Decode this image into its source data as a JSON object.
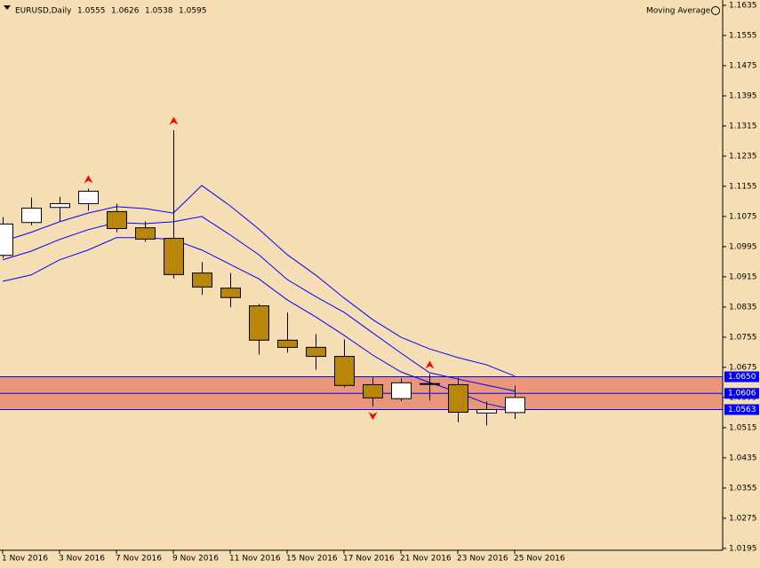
{
  "chart_data": {
    "type": "candlestick",
    "symbol": "EURUSD,Daily",
    "indicator": "Moving Average",
    "background": "#f5deb3",
    "up_color": "#ffffff",
    "down_color": "#b8860b",
    "categories": [
      "1 Nov 2016",
      null,
      "3 Nov 2016",
      null,
      "7 Nov 2016",
      null,
      "9 Nov 2016",
      null,
      "11 Nov 2016",
      null,
      "15 Nov 2016",
      null,
      "17 Nov 2016",
      null,
      "21 Nov 2016",
      null,
      "23 Nov 2016",
      null,
      "25 Nov 2016"
    ],
    "open": [
      1.0972,
      1.1059,
      1.1099,
      1.1109,
      1.1088,
      1.1045,
      1.1017,
      1.0925,
      1.0885,
      1.0838,
      1.0747,
      1.0728,
      1.0704,
      1.0629,
      1.0592,
      1.0632,
      1.0629,
      1.0554,
      1.0555
    ],
    "high": [
      1.1073,
      1.1125,
      1.1127,
      1.1149,
      1.1109,
      1.1062,
      1.1304,
      1.0954,
      1.0925,
      1.0843,
      1.082,
      1.0763,
      1.0749,
      1.0648,
      1.0646,
      1.0657,
      1.0648,
      1.0585,
      1.0626
    ],
    "low": [
      1.0965,
      1.1052,
      1.1062,
      1.109,
      1.1033,
      1.1008,
      1.0911,
      1.0867,
      1.0834,
      1.0709,
      1.0714,
      1.0669,
      1.0622,
      1.0571,
      1.0585,
      1.0587,
      1.053,
      1.0521,
      1.0538
    ],
    "close": [
      1.1055,
      1.1097,
      1.1109,
      1.1142,
      1.1043,
      1.1015,
      1.0921,
      1.0888,
      1.086,
      1.0747,
      1.0728,
      1.0704,
      1.0627,
      1.0594,
      1.0634,
      1.0631,
      1.0556,
      1.0563,
      1.0595
    ],
    "lines": [
      {
        "color": "#0000ff",
        "values": [
          1.1009,
          1.1033,
          1.1061,
          1.1084,
          1.1101,
          1.1096,
          1.1084,
          1.1157,
          1.1103,
          1.1042,
          1.0974,
          1.092,
          1.0859,
          1.0802,
          1.0755,
          1.0724,
          1.0701,
          1.0682,
          1.0652
        ]
      },
      {
        "color": "#0000ff",
        "values": [
          1.096,
          1.0983,
          1.1014,
          1.104,
          1.1059,
          1.1056,
          1.1061,
          1.1075,
          1.1026,
          1.0974,
          1.0908,
          1.0863,
          1.0821,
          1.0767,
          1.0713,
          1.0661,
          1.0644,
          1.0628,
          1.0612
        ]
      },
      {
        "color": "#0000ff",
        "values": [
          1.0903,
          1.092,
          1.096,
          1.0986,
          1.1019,
          1.1019,
          1.1014,
          1.0986,
          1.0948,
          1.091,
          1.0854,
          1.0809,
          1.076,
          1.0708,
          1.0663,
          1.0635,
          1.0609,
          1.0579,
          1.0562
        ]
      }
    ],
    "markers": [
      {
        "index": 3,
        "dir": "up"
      },
      {
        "index": 6,
        "dir": "up"
      },
      {
        "index": 13,
        "dir": "down"
      },
      {
        "index": 15,
        "dir": "up"
      }
    ],
    "marker_color": "#ff0000",
    "band_color": "#e9967a",
    "level_color": "#0000ff",
    "levels": [
      {
        "value": 1.065,
        "label": "1.0650"
      },
      1.0606,
      1.0563
    ],
    "ylim": [
      1.019,
      1.1649
    ],
    "yticks": [
      1.1635,
      1.1555,
      1.1475,
      1.1395,
      1.1315,
      1.1235,
      1.1155,
      1.1075,
      1.0995,
      1.0915,
      1.0835,
      1.0755,
      1.0675,
      1.0595,
      1.0515,
      1.0435,
      1.0355,
      1.0275,
      1.0195
    ]
  }
}
